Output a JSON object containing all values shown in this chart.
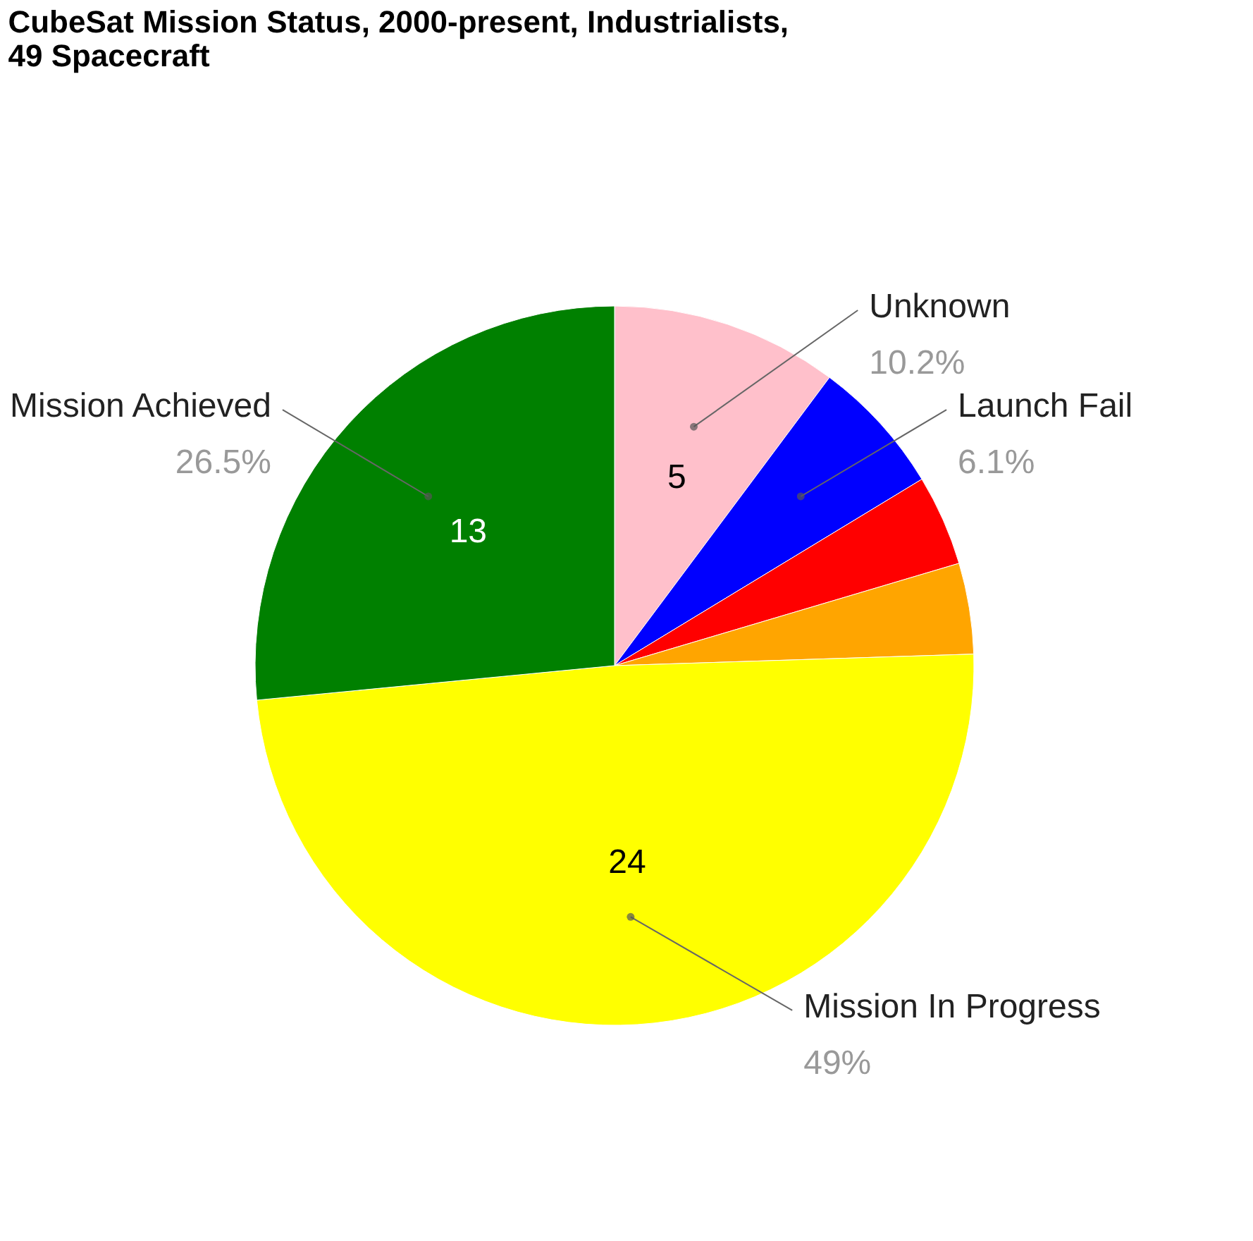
{
  "chart_data": {
    "type": "pie",
    "title": [
      "CubeSat Mission Status, 2000-present, Industrialists,",
      "49 Spacecraft"
    ],
    "categories": [
      "Unknown",
      "Launch Fail",
      null,
      null,
      "Mission In Progress",
      "Mission Achieved"
    ],
    "values": [
      5,
      3,
      2,
      2,
      24,
      13
    ],
    "colors": [
      "#ffc0cb",
      "#0000ff",
      "#ff0000",
      "#ffa500",
      "#ffff00",
      "#008000"
    ],
    "value_labels": [
      "5",
      null,
      null,
      null,
      "24",
      "13"
    ],
    "annotations": [
      "10.2%",
      "6.1%",
      "49%",
      "26.5%"
    ]
  }
}
